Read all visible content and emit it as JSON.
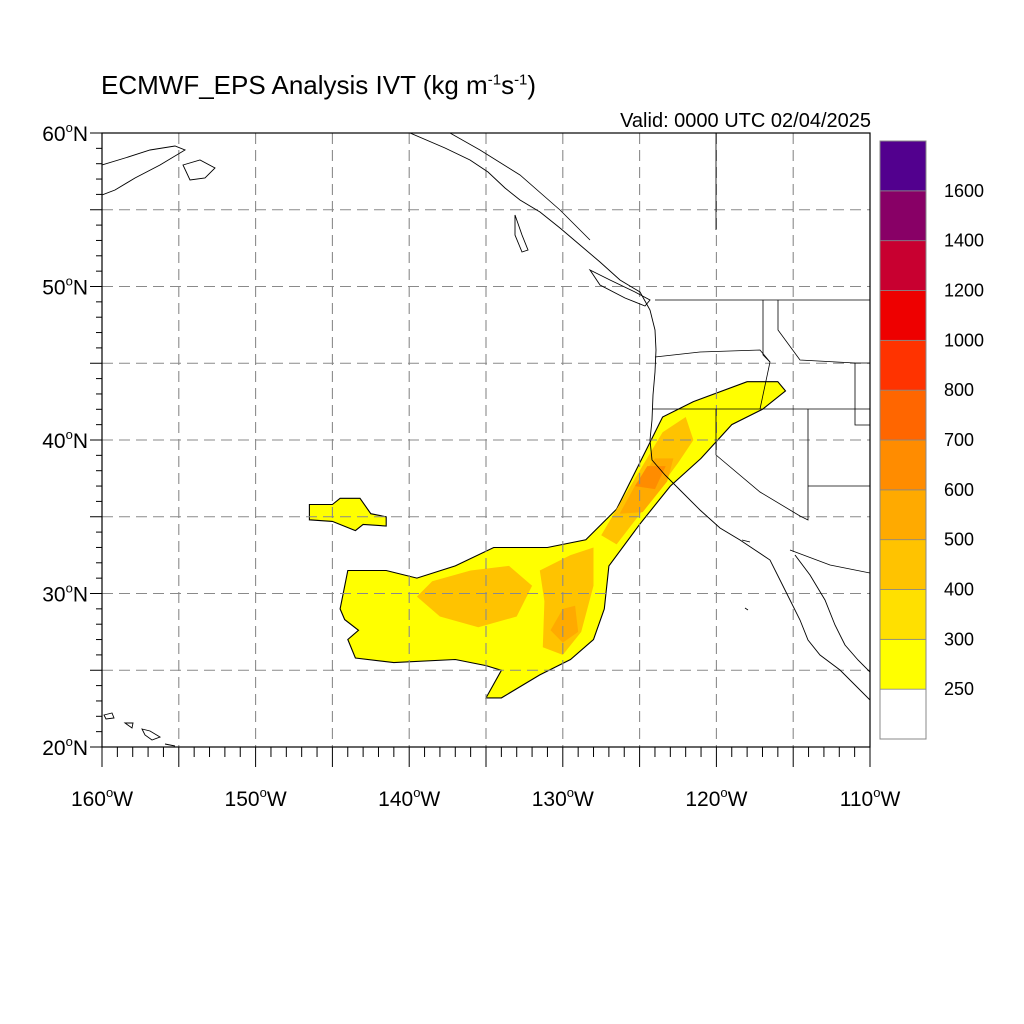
{
  "title": {
    "main": "ECMWF_EPS Analysis IVT (kg m",
    "exp1": "-1",
    "mid": "s",
    "exp2": "-1",
    "end": ")"
  },
  "valid": "Valid: 0000 UTC 02/04/2025",
  "map": {
    "lon_range": [
      -160,
      -110
    ],
    "lat_range": [
      20,
      60
    ],
    "grid": "dashed",
    "grid_step_deg": 5,
    "lat_labels": [
      {
        "value": 60,
        "text": "60",
        "hemi": "N"
      },
      {
        "value": 50,
        "text": "50",
        "hemi": "N"
      },
      {
        "value": 40,
        "text": "40",
        "hemi": "N"
      },
      {
        "value": 30,
        "text": "30",
        "hemi": "N"
      },
      {
        "value": 20,
        "text": "20",
        "hemi": "N"
      }
    ],
    "lon_labels": [
      {
        "value": -160,
        "text": "160",
        "hemi": "W"
      },
      {
        "value": -150,
        "text": "150",
        "hemi": "W"
      },
      {
        "value": -140,
        "text": "140",
        "hemi": "W"
      },
      {
        "value": -130,
        "text": "130",
        "hemi": "W"
      },
      {
        "value": -120,
        "text": "120",
        "hemi": "W"
      },
      {
        "value": -110,
        "text": "110",
        "hemi": "W"
      }
    ],
    "ivt_regions": [
      {
        "name": "atmospheric-river-main",
        "level": 250,
        "outline": [
          [
            -144,
            31.5
          ],
          [
            -141.5,
            31.5
          ],
          [
            -139.5,
            31
          ],
          [
            -137,
            31.8
          ],
          [
            -134.5,
            33
          ],
          [
            -131,
            33
          ],
          [
            -128.5,
            33.5
          ],
          [
            -126.5,
            35.5
          ],
          [
            -124.5,
            39.5
          ],
          [
            -123.5,
            41.5
          ],
          [
            -121.5,
            42.5
          ],
          [
            -118,
            43.8
          ],
          [
            -116,
            43.8
          ],
          [
            -115.5,
            43.2
          ],
          [
            -117,
            42
          ],
          [
            -119,
            41
          ],
          [
            -121,
            38.8
          ],
          [
            -123,
            37
          ],
          [
            -125,
            34.5
          ],
          [
            -127,
            31.8
          ],
          [
            -127.3,
            29
          ],
          [
            -128,
            27
          ],
          [
            -129.5,
            25.7
          ],
          [
            -131.5,
            24.7
          ],
          [
            -134,
            23.2
          ],
          [
            -135,
            23.2
          ],
          [
            -134,
            25
          ],
          [
            -135,
            25.3
          ],
          [
            -137,
            25.7
          ],
          [
            -141,
            25.5
          ],
          [
            -143.5,
            25.8
          ],
          [
            -144,
            27
          ],
          [
            -143.3,
            27.6
          ],
          [
            -144.2,
            28.3
          ],
          [
            -144.5,
            29
          ]
        ]
      },
      {
        "name": "isolated-patch",
        "level": 250,
        "outline": [
          [
            -146.5,
            35.8
          ],
          [
            -145,
            35.8
          ],
          [
            -144.5,
            36.2
          ],
          [
            -143.2,
            36.2
          ],
          [
            -142.5,
            35.2
          ],
          [
            -141.5,
            35
          ],
          [
            -141.5,
            34.4
          ],
          [
            -143,
            34.5
          ],
          [
            -143.5,
            34.1
          ],
          [
            -145,
            34.7
          ],
          [
            -146.5,
            34.8
          ]
        ]
      }
    ],
    "ivt_cores": [
      {
        "name": "core-400-west",
        "level": 400,
        "outline": [
          [
            -138.5,
            30.8
          ],
          [
            -136,
            31.5
          ],
          [
            -133.5,
            31.8
          ],
          [
            -132,
            30.5
          ],
          [
            -133,
            28.5
          ],
          [
            -135.5,
            27.8
          ],
          [
            -138,
            28.5
          ],
          [
            -139.5,
            29.8
          ]
        ]
      },
      {
        "name": "core-400-central",
        "level": 400,
        "outline": [
          [
            -131.5,
            31.5
          ],
          [
            -129.5,
            32.5
          ],
          [
            -128,
            33
          ],
          [
            -128,
            30.5
          ],
          [
            -128.8,
            27.5
          ],
          [
            -130,
            26
          ],
          [
            -131.3,
            26.5
          ],
          [
            -131.2,
            29.5
          ]
        ]
      },
      {
        "name": "core-400-coastal",
        "level": 400,
        "outline": [
          [
            -127.5,
            33.8
          ],
          [
            -126.5,
            35.5
          ],
          [
            -125,
            38
          ],
          [
            -123.5,
            40.5
          ],
          [
            -122,
            41.5
          ],
          [
            -121.5,
            40
          ],
          [
            -122.5,
            38.5
          ],
          [
            -124.5,
            35.8
          ],
          [
            -126.5,
            33.2
          ]
        ]
      },
      {
        "name": "core-500-coastal",
        "level": 500,
        "outline": [
          [
            -126.3,
            35.2
          ],
          [
            -125.2,
            37.2
          ],
          [
            -124,
            38.8
          ],
          [
            -122.8,
            38.8
          ],
          [
            -123.2,
            37.3
          ],
          [
            -124.8,
            35.3
          ]
        ]
      },
      {
        "name": "core-600-coastal",
        "level": 600,
        "outline": [
          [
            -125.3,
            37
          ],
          [
            -124.5,
            38.3
          ],
          [
            -123.3,
            38.3
          ],
          [
            -124,
            36.8
          ]
        ]
      },
      {
        "name": "core-500-central",
        "level": 500,
        "outline": [
          [
            -130,
            29
          ],
          [
            -129.2,
            29.2
          ],
          [
            -129,
            27.5
          ],
          [
            -130,
            26.8
          ],
          [
            -130.8,
            27.6
          ]
        ]
      }
    ],
    "states_visible": true,
    "coastlines_visible": true
  },
  "colorbar": {
    "colors": [
      "#ffffff",
      "#ffff00",
      "#ffe000",
      "#ffc300",
      "#ffaa00",
      "#ff8c00",
      "#ff6600",
      "#ff3300",
      "#ee0000",
      "#c80030",
      "#880066",
      "#52008e"
    ],
    "labels": [
      "250",
      "300",
      "400",
      "500",
      "600",
      "700",
      "800",
      "1000",
      "1200",
      "1400",
      "1600"
    ]
  }
}
